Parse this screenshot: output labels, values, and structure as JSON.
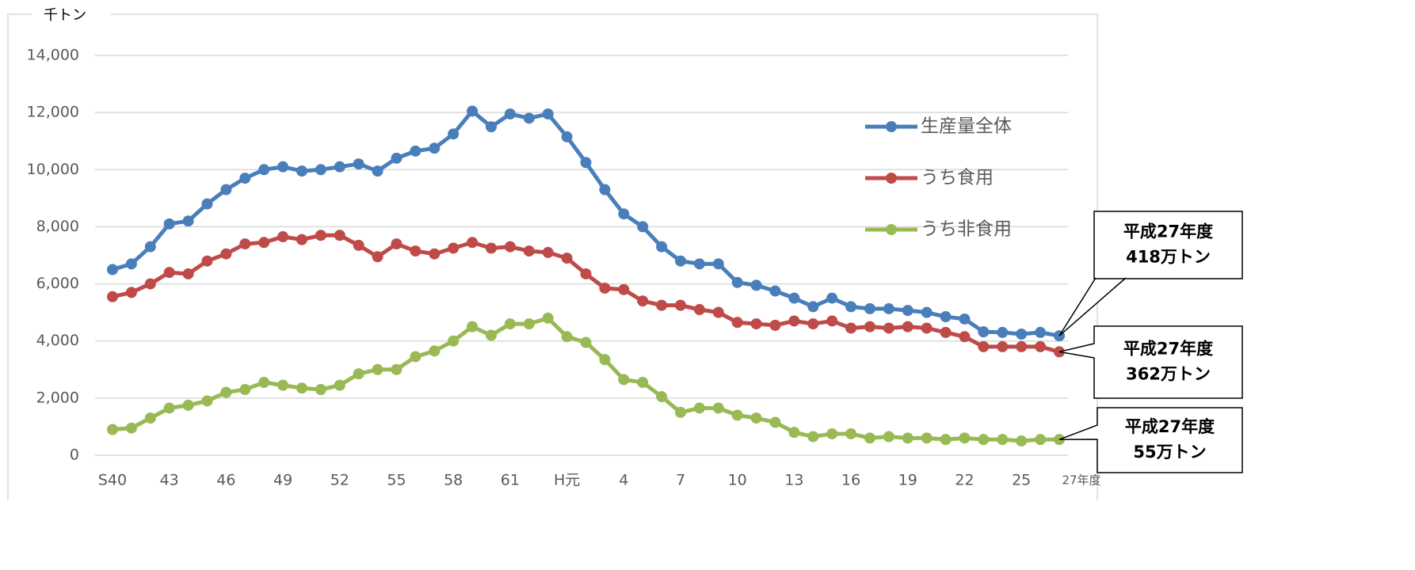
{
  "chart_data": {
    "type": "line",
    "y_unit": "千トン",
    "categories": [
      "S40",
      null,
      null,
      "43",
      null,
      null,
      "46",
      null,
      null,
      "49",
      null,
      null,
      "52",
      null,
      null,
      "55",
      null,
      null,
      "58",
      null,
      null,
      "61",
      null,
      null,
      "H元",
      null,
      null,
      "4",
      null,
      null,
      "7",
      null,
      null,
      "10",
      null,
      null,
      "13",
      null,
      null,
      "16",
      null,
      null,
      "19",
      null,
      null,
      "22",
      null,
      null,
      "25",
      null,
      "27年度"
    ],
    "series": [
      {
        "name": "生産量全体",
        "color": "#4a7ebb",
        "values": [
          6500,
          6700,
          7300,
          8100,
          8200,
          8800,
          9300,
          9700,
          10000,
          10100,
          9950,
          10000,
          10100,
          10200,
          9950,
          10400,
          10650,
          10750,
          11250,
          12050,
          11500,
          11950,
          11800,
          11950,
          11150,
          10250,
          9300,
          8450,
          8000,
          7300,
          6800,
          6700,
          6700,
          6050,
          5950,
          5750,
          5500,
          5200,
          5500,
          5200,
          5130,
          5130,
          5070,
          5000,
          4850,
          4770,
          4320,
          4300,
          4240,
          4300,
          4180
        ]
      },
      {
        "name": "うち食用",
        "color": "#be4b48",
        "values": [
          5550,
          5700,
          6000,
          6400,
          6350,
          6800,
          7050,
          7400,
          7450,
          7650,
          7550,
          7700,
          7700,
          7350,
          6950,
          7400,
          7150,
          7050,
          7250,
          7450,
          7250,
          7300,
          7150,
          7100,
          6900,
          6350,
          5850,
          5800,
          5400,
          5250,
          5250,
          5100,
          5000,
          4650,
          4600,
          4550,
          4700,
          4600,
          4700,
          4450,
          4500,
          4450,
          4500,
          4450,
          4300,
          4150,
          3800,
          3800,
          3800,
          3800,
          3620
        ]
      },
      {
        "name": "うち非食用",
        "color": "#98b954",
        "values": [
          900,
          950,
          1300,
          1650,
          1750,
          1900,
          2200,
          2300,
          2550,
          2450,
          2350,
          2300,
          2450,
          2850,
          3000,
          3000,
          3450,
          3650,
          4000,
          4500,
          4200,
          4600,
          4600,
          4800,
          4150,
          3950,
          3350,
          2650,
          2550,
          2050,
          1500,
          1650,
          1650,
          1400,
          1300,
          1150,
          800,
          650,
          750,
          750,
          600,
          650,
          600,
          600,
          550,
          600,
          550,
          550,
          500,
          550,
          550
        ]
      }
    ],
    "ylim": [
      0,
      14000
    ],
    "yticks": [
      0,
      {
        "value": 2000,
        "label": "2,000"
      },
      {
        "value": 4000,
        "label": "4,000"
      },
      {
        "value": 6000,
        "label": "6,000"
      },
      {
        "value": 8000,
        "label": "8,000"
      },
      {
        "value": 10000,
        "label": "10,000"
      },
      {
        "value": 12000,
        "label": "12,000"
      },
      {
        "value": 14000,
        "label": "14,000"
      }
    ],
    "grid": true,
    "annotations": [
      {
        "lines": [
          "平成27年度",
          "418万トン"
        ]
      },
      {
        "lines": [
          "平成27年度",
          "362万トン"
        ]
      },
      {
        "lines": [
          "平成27年度",
          "55万トン"
        ]
      }
    ]
  }
}
